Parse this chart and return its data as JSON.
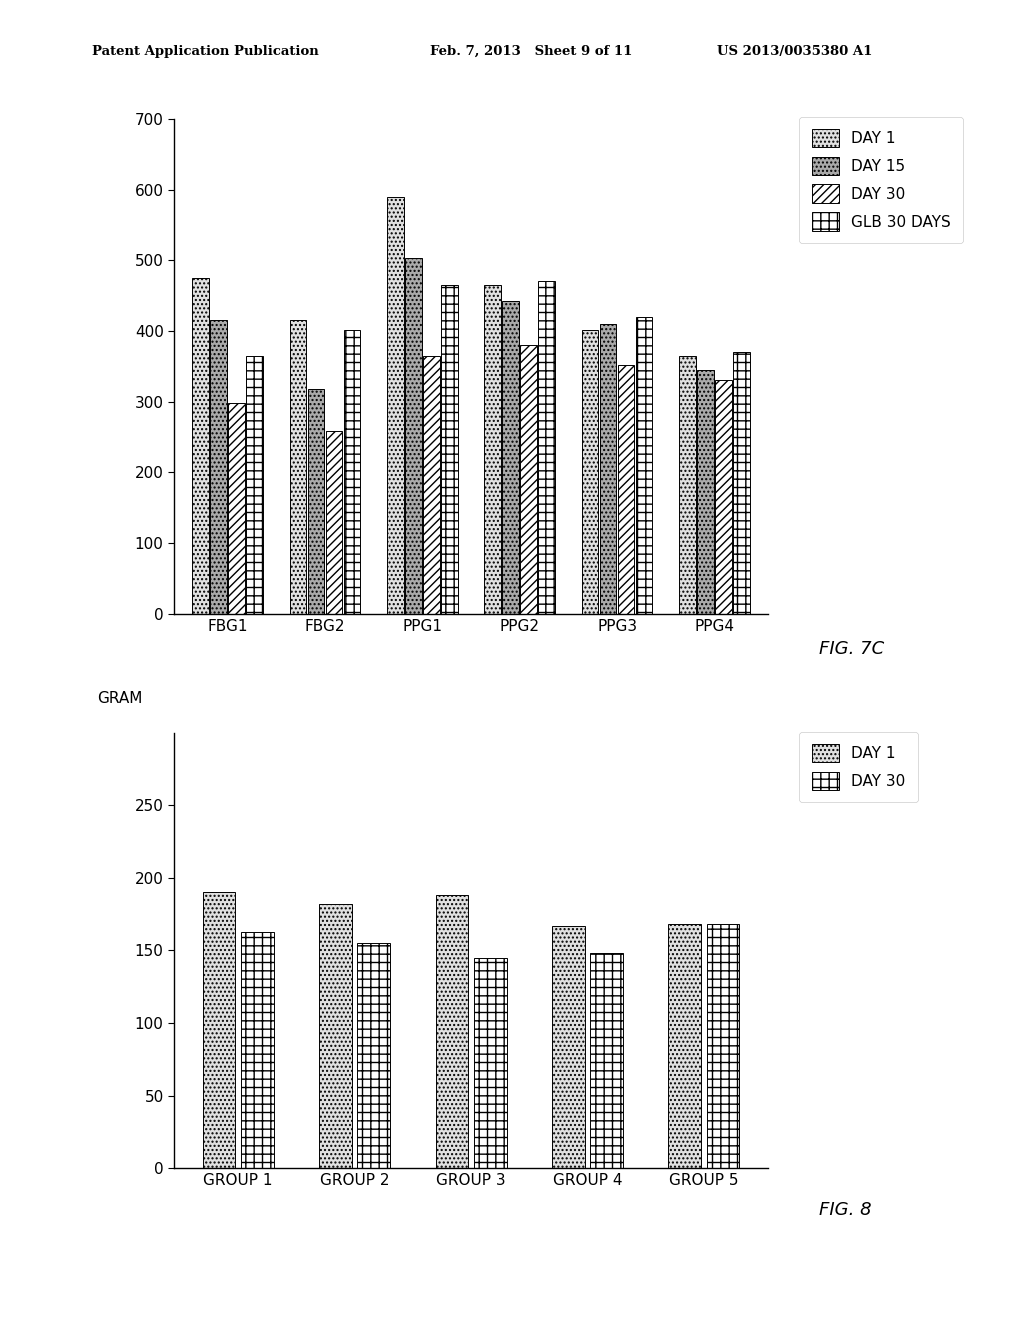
{
  "fig7c": {
    "categories": [
      "FBG1",
      "FBG2",
      "PPG1",
      "PPG2",
      "PPG3",
      "PPG4"
    ],
    "series": {
      "DAY 1": [
        475,
        415,
        590,
        465,
        402,
        365
      ],
      "DAY 15": [
        415,
        318,
        503,
        443,
        410,
        345
      ],
      "DAY 30": [
        298,
        258,
        365,
        380,
        352,
        330
      ],
      "GLB 30 DAYS": [
        365,
        402,
        465,
        470,
        420,
        370
      ]
    },
    "ylim": [
      0,
      700
    ],
    "yticks": [
      0,
      100,
      200,
      300,
      400,
      500,
      600,
      700
    ],
    "fig_label": "FIG. 7C",
    "bar_facecolors": [
      "#e0e0e0",
      "#aaaaaa",
      "#ffffff",
      "#ffffff"
    ],
    "bar_hatches": [
      "....",
      "....",
      "////",
      "++"
    ],
    "legend_labels": [
      "DAY 1",
      "DAY 15",
      "DAY 30",
      "GLB 30 DAYS"
    ],
    "legend_facecolors": [
      "#e0e0e0",
      "#aaaaaa",
      "#ffffff",
      "#ffffff"
    ],
    "legend_hatches": [
      "....",
      "....",
      "////",
      "++"
    ]
  },
  "fig8": {
    "categories": [
      "GROUP 1",
      "GROUP 2",
      "GROUP 3",
      "GROUP 4",
      "GROUP 5"
    ],
    "series": {
      "DAY 1": [
        190,
        182,
        188,
        167,
        168
      ],
      "DAY 30": [
        163,
        155,
        145,
        148,
        168
      ]
    },
    "ylim": [
      0,
      300
    ],
    "yticks": [
      0,
      50,
      100,
      150,
      200,
      250
    ],
    "ylabel": "GRAM",
    "fig_label": "FIG. 8",
    "bar_facecolors": [
      "#e0e0e0",
      "#ffffff"
    ],
    "bar_hatches": [
      "....",
      "++"
    ],
    "legend_labels": [
      "DAY 1",
      "DAY 30"
    ],
    "legend_facecolors": [
      "#e0e0e0",
      "#ffffff"
    ],
    "legend_hatches": [
      "....",
      "++"
    ]
  },
  "header_left": "Patent Application Publication",
  "header_mid": "Feb. 7, 2013   Sheet 9 of 11",
  "header_right": "US 2013/0035380 A1",
  "bg_color": "#ffffff",
  "text_color": "#000000"
}
